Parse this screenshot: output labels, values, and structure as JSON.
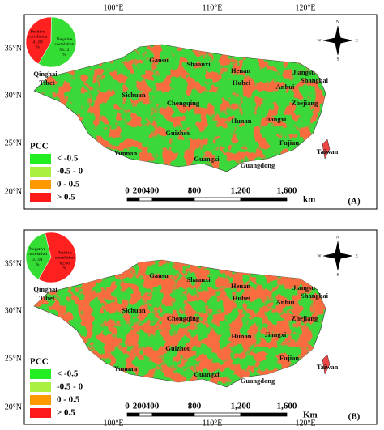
{
  "lon_labels": [
    "100°E",
    "110°E",
    "120°E"
  ],
  "lat_labels": [
    "35°N",
    "30°N",
    "25°N",
    "20°N"
  ],
  "provinces": [
    "Gansu",
    "Shaanxi",
    "Henan",
    "Jiangsu",
    "Shanghai",
    "Qinghai",
    "Tibet",
    "Sichuan",
    "Chongqing",
    "Hubei",
    "Anhui",
    "Zhejiang",
    "Guizhou",
    "Hunan",
    "Jiangxi",
    "Fujian",
    "Yunnan",
    "Guangxi",
    "Guangdong",
    "Taiwan"
  ],
  "compass": [
    "N",
    "E",
    "S",
    "W"
  ],
  "legend": {
    "title": "PCC",
    "items": [
      "< -0.5",
      "-0.5 - 0",
      "0 - 0.5",
      "> 0.5"
    ]
  },
  "scale": [
    "0",
    "200",
    "400",
    "800",
    "1,200",
    "1,600"
  ],
  "panels": [
    {
      "label": "(A)",
      "scale_unit": "km",
      "pie": [
        {
          "name": [
            "Positive",
            "correlation"
          ],
          "value": 41.88,
          "unit": "%",
          "color": "#ff2020"
        },
        {
          "name": [
            "Negative",
            "correlation"
          ],
          "value": 58.12,
          "unit": "%",
          "color": "#33dd33"
        }
      ]
    },
    {
      "label": "(B)",
      "scale_unit": "Km",
      "pie": [
        {
          "name": [
            "Negative",
            "correlation"
          ],
          "value": 37.94,
          "unit": "%",
          "color": "#33dd33"
        },
        {
          "name": [
            "Positive",
            "correlation"
          ],
          "value": 62.06,
          "unit": "%",
          "color": "#ff2020"
        }
      ]
    }
  ]
}
